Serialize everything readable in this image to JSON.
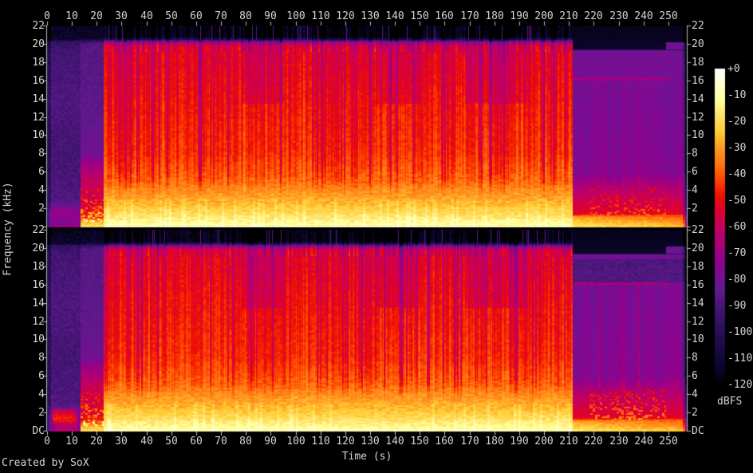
{
  "footer": {
    "credit": "Created by SoX"
  },
  "colors": {
    "background": "#000000",
    "axis": "#bebebe",
    "text": "#d4d4d4"
  },
  "axes": {
    "time": {
      "label": "Time (s)",
      "ticks": [
        "0",
        "10",
        "20",
        "30",
        "40",
        "50",
        "60",
        "70",
        "80",
        "90",
        "100",
        "110",
        "120",
        "130",
        "140",
        "150",
        "160",
        "170",
        "180",
        "190",
        "200",
        "210",
        "220",
        "230",
        "240",
        "250"
      ]
    },
    "frequency": {
      "label": "Frequency (kHz)",
      "ticks_channel1": [
        "22",
        "20",
        "18",
        "16",
        "14",
        "12",
        "10",
        "8",
        "6",
        "4",
        "2"
      ],
      "ticks_channel2": [
        "22",
        "20",
        "18",
        "16",
        "14",
        "12",
        "10",
        "8",
        "6",
        "4",
        "2",
        "DC"
      ]
    },
    "colorbar": {
      "label": "dBFS",
      "ticks": [
        "+0",
        "-10",
        "-20",
        "-30",
        "-40",
        "-50",
        "-60",
        "-70",
        "-80",
        "-90",
        "-100",
        "-110",
        "-120"
      ]
    }
  },
  "chart_data": {
    "type": "heatmap",
    "subtype": "audio-spectrogram",
    "channels": 2,
    "time_range_s": [
      0,
      257
    ],
    "freq_range_khz": [
      0,
      22
    ],
    "level_range_dbfs": [
      -120,
      0
    ],
    "xlabel": "Time (s)",
    "ylabel": "Frequency (kHz)",
    "legend_label": "dBFS",
    "content_summary": "Stereo spectrogram: quiet intro to ~13 s, build-up ~13-22 s, loud broadband music ~22-212 s with ~20.3 kHz lowpass cutoff and vertical beat striations, quiet purple outro ~212-257 s with warm speckles below 4.5 kHz and bright bass floor.",
    "sections": [
      {
        "name": "intro",
        "t": [
          0,
          13.2
        ],
        "profile": [
          [
            0,
            -70
          ],
          [
            0.5,
            -76
          ],
          [
            1.2,
            -72
          ],
          [
            2,
            -78
          ],
          [
            3,
            -88
          ],
          [
            8,
            -91
          ],
          [
            14,
            -88
          ],
          [
            19,
            -91
          ],
          [
            20.3,
            -96
          ],
          [
            20.5,
            -112
          ],
          [
            22,
            -115
          ]
        ]
      },
      {
        "name": "buildup",
        "t": [
          13.2,
          22.5
        ],
        "profile": [
          [
            0,
            -18
          ],
          [
            0.5,
            -26
          ],
          [
            1,
            -45
          ],
          [
            2,
            -55
          ],
          [
            3,
            -58
          ],
          [
            5,
            -62
          ],
          [
            7,
            -70
          ],
          [
            8,
            -80
          ],
          [
            12,
            -84
          ],
          [
            20,
            -87
          ],
          [
            20.4,
            -100
          ],
          [
            20.6,
            -112
          ],
          [
            22,
            -115
          ]
        ]
      },
      {
        "name": "main",
        "t": [
          22.5,
          211.5
        ],
        "profile": [
          [
            0,
            -8
          ],
          [
            0.4,
            -12
          ],
          [
            1,
            -16
          ],
          [
            1.5,
            -20
          ],
          [
            2.5,
            -26
          ],
          [
            4,
            -32
          ],
          [
            5,
            -38
          ],
          [
            8,
            -45
          ],
          [
            14,
            -49
          ],
          [
            19,
            -53
          ],
          [
            19.8,
            -56
          ],
          [
            20.1,
            -62
          ],
          [
            20.35,
            -85
          ],
          [
            20.55,
            -105
          ],
          [
            20.8,
            -116
          ],
          [
            22,
            -117
          ]
        ]
      },
      {
        "name": "outro",
        "t": [
          211.5,
          257.5
        ],
        "profile": [
          [
            0,
            -16
          ],
          [
            0.4,
            -22
          ],
          [
            1.1,
            -30
          ],
          [
            1.4,
            -52
          ],
          [
            3,
            -58
          ],
          [
            4.5,
            -66
          ],
          [
            6,
            -75
          ],
          [
            16,
            -78
          ],
          [
            19.3,
            -80
          ],
          [
            19.45,
            -113
          ],
          [
            22,
            -116
          ]
        ]
      }
    ],
    "events": {
      "full_band_transient_s": 61.5,
      "main_dark_patches_s": [
        [
          78,
          95
        ],
        [
          132,
          150
        ],
        [
          168,
          193
        ]
      ],
      "outro_speckle_cluster_s": [
        218,
        249
      ],
      "outro_top_cap": {
        "t_start_s": 249,
        "f_top_khz": 20.2
      },
      "outro_hf_line_khz": 16.1,
      "channel_differences": {
        "ch1_intro_band": {
          "t": [
            2,
            9
          ],
          "f_khz": [
            1.5,
            2.0
          ],
          "db": -71
        },
        "ch2_intro_blob": {
          "t": [
            2,
            12
          ],
          "f_khz": [
            0.8,
            2.4
          ],
          "peak_db": -46
        },
        "ch2_outro_hf_darker_db": -9
      }
    },
    "palette_dbfs_to_color": [
      [
        0,
        "#ffffff"
      ],
      [
        -6,
        "#ffffcc"
      ],
      [
        -12,
        "#ffff99"
      ],
      [
        -18,
        "#ffe066"
      ],
      [
        -24,
        "#ffcc33"
      ],
      [
        -30,
        "#ff9922"
      ],
      [
        -36,
        "#ff7711"
      ],
      [
        -42,
        "#ff4400"
      ],
      [
        -48,
        "#ee1100"
      ],
      [
        -54,
        "#dd0033"
      ],
      [
        -60,
        "#c40061"
      ],
      [
        -66,
        "#ad0075"
      ],
      [
        -72,
        "#95008a"
      ],
      [
        -78,
        "#7a0d95"
      ],
      [
        -84,
        "#601a8d"
      ],
      [
        -90,
        "#471677"
      ],
      [
        -96,
        "#331263"
      ],
      [
        -102,
        "#220d50"
      ],
      [
        -108,
        "#150940"
      ],
      [
        -114,
        "#0a0526"
      ],
      [
        -120,
        "#000000"
      ]
    ]
  }
}
